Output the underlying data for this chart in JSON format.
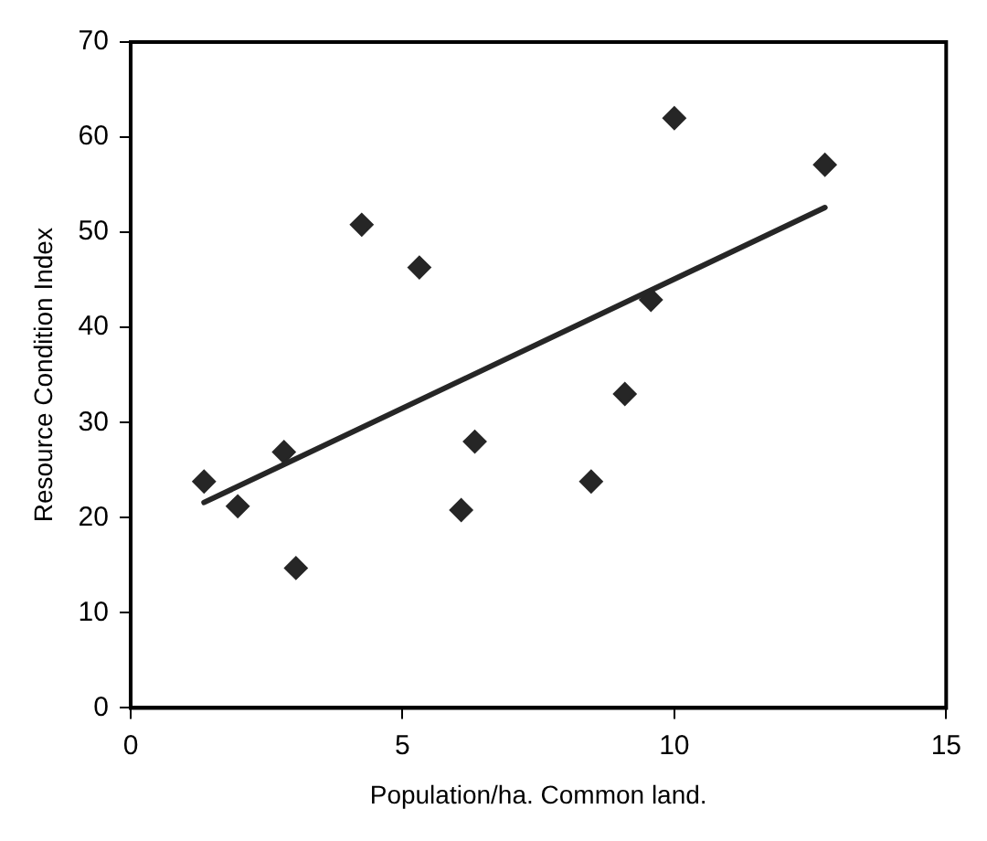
{
  "chart_data": {
    "type": "scatter",
    "xlabel": "Population/ha. Common land.",
    "ylabel": "Resource Condition Index",
    "xlim": [
      0,
      15
    ],
    "xticks": [
      0,
      5,
      10,
      15
    ],
    "ylim": [
      0,
      70
    ],
    "yticks": [
      0,
      10,
      20,
      30,
      40,
      50,
      60,
      70
    ],
    "grid": false,
    "legend": false,
    "marker": "diamond",
    "series": [
      {
        "color": "#262626",
        "x": [
          1.35,
          1.97,
          2.82,
          3.04,
          4.25,
          5.31,
          6.08,
          6.33,
          8.47,
          9.09,
          9.57,
          10.0,
          12.77
        ],
        "values": [
          23.8,
          21.2,
          26.9,
          14.7,
          50.8,
          46.3,
          20.8,
          28.0,
          23.8,
          33.0,
          42.9,
          62.0,
          57.1
        ]
      },
      {
        "type": "line",
        "color": "#262626",
        "x": [
          1.35,
          12.77
        ],
        "values": [
          21.6,
          52.6
        ],
        "marker": "none",
        "line_style": "solid"
      }
    ]
  }
}
